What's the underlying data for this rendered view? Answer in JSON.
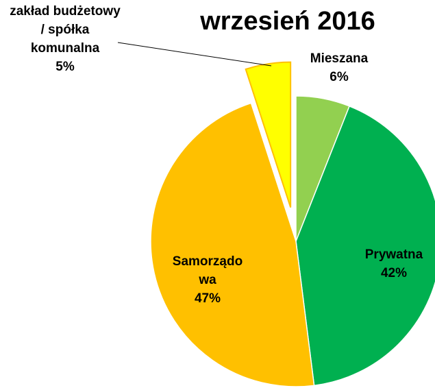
{
  "chart_data": {
    "type": "pie",
    "title": "wrzesień 2016",
    "categories": [
      "Mieszana",
      "Prywatna",
      "Samorządowa",
      "zakład budżetowy / spółka komunalna"
    ],
    "values": [
      6,
      42,
      47,
      5
    ],
    "value_labels": [
      "6%",
      "42%",
      "47%",
      "5%"
    ],
    "colors": [
      "#92d050",
      "#00b050",
      "#ffc000",
      "#ffff00"
    ]
  }
}
